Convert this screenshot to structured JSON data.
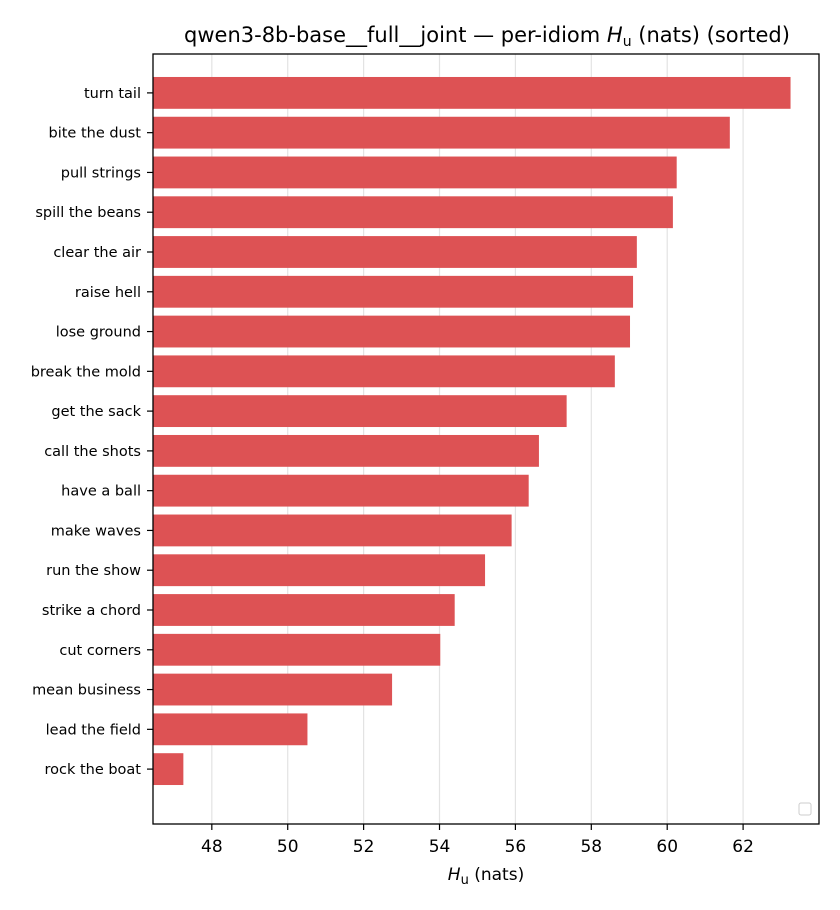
{
  "chart_data": {
    "type": "bar",
    "orientation": "horizontal",
    "title_prefix": "qwen3-8b-base__full__joint — per-idiom ",
    "title_symbol": "H",
    "title_subscript": "u",
    "title_suffix": " (nats) (sorted)",
    "xlabel_symbol": "H",
    "xlabel_subscript": "u",
    "xlabel_suffix": " (nats)",
    "ylabel": "",
    "categories": [
      "turn tail",
      "bite the dust",
      "pull strings",
      "spill the beans",
      "clear the air",
      "raise hell",
      "lose ground",
      "break the mold",
      "get the sack",
      "call the shots",
      "have a ball",
      "make waves",
      "run the show",
      "strike a chord",
      "cut corners",
      "mean business",
      "lead the field",
      "rock the boat"
    ],
    "values": [
      63.25,
      61.65,
      60.25,
      60.15,
      59.2,
      59.1,
      59.02,
      58.62,
      57.35,
      56.62,
      56.35,
      55.9,
      55.2,
      54.4,
      54.02,
      52.75,
      50.52,
      47.25
    ],
    "xlim": [
      46.45,
      64.0
    ],
    "xticks": [
      48,
      50,
      52,
      54,
      56,
      58,
      60,
      62
    ],
    "grid": "vertical",
    "legend": "bottom-right (empty)",
    "bar_color": "#dd5254"
  }
}
